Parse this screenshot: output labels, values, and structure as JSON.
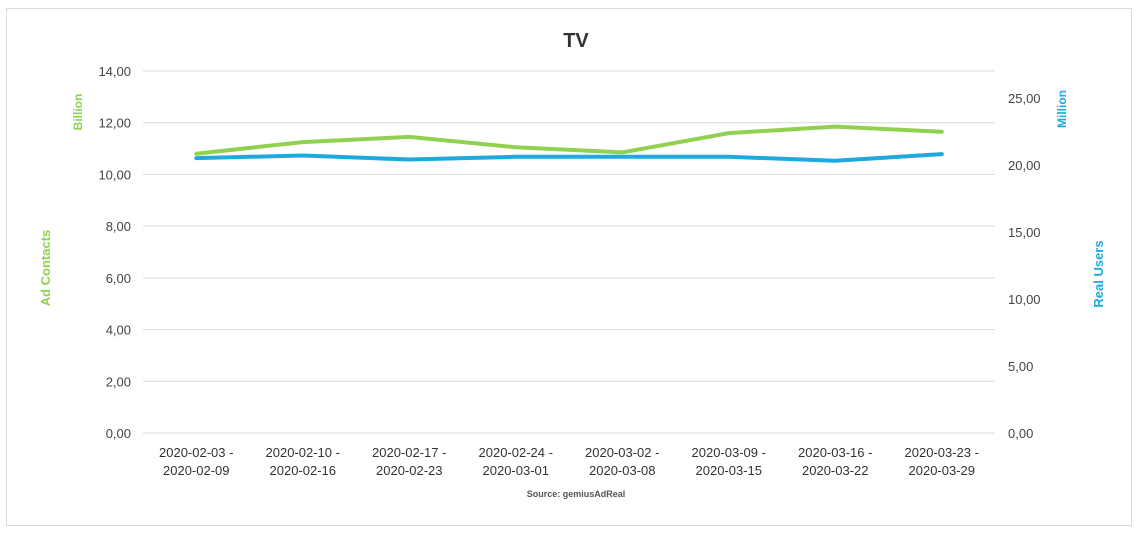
{
  "chart_data": {
    "type": "line",
    "title": "TV",
    "source": "Source: gemiusAdReal",
    "categories": [
      [
        "2020-02-03 -",
        "2020-02-09"
      ],
      [
        "2020-02-10 -",
        "2020-02-16"
      ],
      [
        "2020-02-17 -",
        "2020-02-23"
      ],
      [
        "2020-02-24 -",
        "2020-03-01"
      ],
      [
        "2020-03-02 -",
        "2020-03-08"
      ],
      [
        "2020-03-09 -",
        "2020-03-15"
      ],
      [
        "2020-03-16 -",
        "2020-03-22"
      ],
      [
        "2020-03-23 -",
        "2020-03-29"
      ]
    ],
    "y_left": {
      "label": "Ad Contacts",
      "unit": "Billion",
      "ylim": [
        0,
        14
      ],
      "ticks": [
        "0,00",
        "2,00",
        "4,00",
        "6,00",
        "8,00",
        "10,00",
        "12,00",
        "14,00"
      ]
    },
    "y_right": {
      "label": "Real Users",
      "unit": "Million",
      "ylim": [
        0,
        27
      ],
      "ticks": [
        "0,00",
        "5,00",
        "10,00",
        "15,00",
        "20,00",
        "25,00"
      ]
    },
    "series": [
      {
        "name": "Ad Contacts",
        "axis": "left",
        "color": "#92d050",
        "values": [
          10.8,
          11.25,
          11.45,
          11.05,
          10.85,
          11.6,
          11.85,
          11.65
        ]
      },
      {
        "name": "Real Users",
        "axis": "right",
        "color": "#1fa9e1",
        "values": [
          20.5,
          20.7,
          20.4,
          20.6,
          20.6,
          20.6,
          20.3,
          20.8
        ]
      }
    ],
    "grid": true,
    "legend": "none"
  }
}
